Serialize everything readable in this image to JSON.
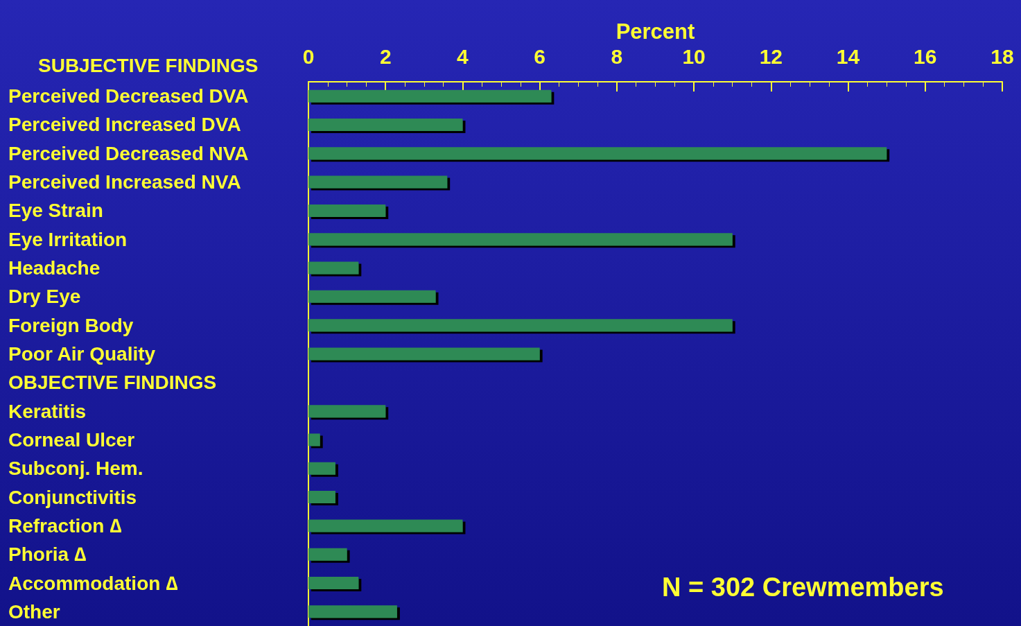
{
  "chart_data": {
    "type": "bar",
    "orientation": "horizontal",
    "xlabel": "Percent",
    "categories": [
      "Perceived Decreased DVA",
      "Perceived Increased DVA",
      "Perceived Decreased NVA",
      "Perceived Increased NVA",
      "Eye Strain",
      "Eye Irritation",
      "Headache",
      "Dry Eye",
      "Foreign Body",
      "Poor Air Quality",
      "OBJECTIVE FINDINGS",
      "Keratitis",
      "Corneal Ulcer",
      "Subconj. Hem.",
      "Conjunctivitis",
      "Refraction ∆",
      "Phoria ∆",
      "Accommodation ∆",
      "Other"
    ],
    "values": [
      6.3,
      4.0,
      15.0,
      3.6,
      2.0,
      11.0,
      1.3,
      3.3,
      11.0,
      6.0,
      null,
      2.0,
      0.3,
      0.7,
      0.7,
      4.0,
      1.0,
      1.3,
      2.3
    ],
    "color": "#2e8a55",
    "xlim": [
      0,
      18
    ],
    "xticks": [
      0,
      2,
      4,
      6,
      8,
      10,
      12,
      14,
      16,
      18
    ],
    "grid": false,
    "annotations": [
      "SUBJECTIVE FINDINGS",
      "N = 302 Crewmembers"
    ]
  }
}
